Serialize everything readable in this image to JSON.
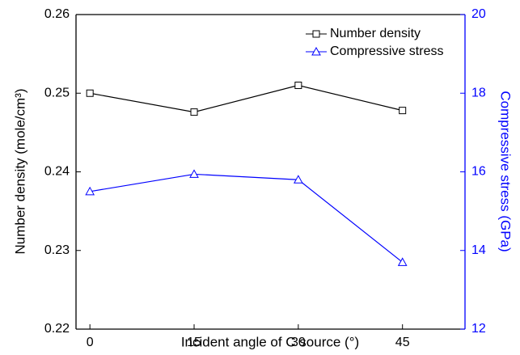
{
  "chart_data": {
    "type": "line",
    "x_label": "Incident angle of C source (°)",
    "y_label": "Number density (mole/cm³)",
    "y2_label": "Compressive stress (GPa)",
    "x": [
      0,
      15,
      30,
      45
    ],
    "xlim": [
      -2,
      54
    ],
    "xticks": [
      0,
      15,
      30,
      45
    ],
    "ylim": [
      0.22,
      0.26
    ],
    "yticks": [
      0.22,
      0.23,
      0.24,
      0.25,
      0.26
    ],
    "y2lim": [
      12,
      20
    ],
    "y2ticks": [
      12,
      14,
      16,
      18,
      20
    ],
    "legend": "top-right",
    "series": [
      {
        "name": "Number density",
        "color": "#000000",
        "marker": "square",
        "values": [
          0.25,
          0.2476,
          0.251,
          0.2478
        ]
      },
      {
        "name": "Compressive stress",
        "color": "#0000ff",
        "marker": "triangle",
        "axis": "y2",
        "values": [
          15.5,
          15.94,
          15.8,
          13.7
        ]
      }
    ]
  }
}
